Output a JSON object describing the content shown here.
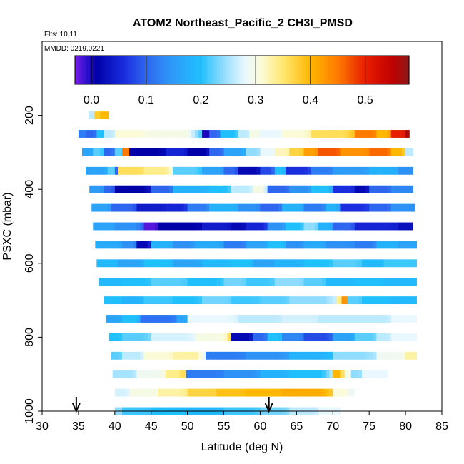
{
  "chart_data": {
    "type": "heatmap",
    "title": "ATOM2 Northeast_Pacific_2 CH3I_PMSD",
    "flights_label": "Flts: 10,11",
    "date_label": "MMDD: 0219,0221",
    "xlabel": "Latitude (deg N)",
    "ylabel": "PSXC (mbar)",
    "xlim": [
      30,
      85
    ],
    "ylim": [
      1000,
      0
    ],
    "xticks": [
      "30",
      "35",
      "40",
      "45",
      "50",
      "55",
      "60",
      "65",
      "70",
      "75",
      "80",
      "85"
    ],
    "yticks": [
      "200",
      "400",
      "600",
      "800",
      "1000"
    ],
    "colorbar": {
      "range": [
        -0.03,
        0.58
      ],
      "ticks": [
        "0.0",
        "0.1",
        "0.2",
        "0.3",
        "0.4",
        "0.5"
      ],
      "stops": [
        {
          "v": -0.03,
          "c": "#7a1fe6"
        },
        {
          "v": -0.01,
          "c": "#3010d0"
        },
        {
          "v": 0.01,
          "c": "#0000a8"
        },
        {
          "v": 0.06,
          "c": "#1a2ee0"
        },
        {
          "v": 0.1,
          "c": "#2f66f0"
        },
        {
          "v": 0.15,
          "c": "#2d9cf8"
        },
        {
          "v": 0.2,
          "c": "#20c0ff"
        },
        {
          "v": 0.24,
          "c": "#8fdcff"
        },
        {
          "v": 0.28,
          "c": "#e9f8ff"
        },
        {
          "v": 0.31,
          "c": "#fbfbd8"
        },
        {
          "v": 0.35,
          "c": "#ffe870"
        },
        {
          "v": 0.4,
          "c": "#ffb700"
        },
        {
          "v": 0.45,
          "c": "#ff7a00"
        },
        {
          "v": 0.5,
          "c": "#e81e00"
        },
        {
          "v": 0.55,
          "c": "#c00000"
        },
        {
          "v": 0.58,
          "c": "#8b1a1a"
        }
      ]
    },
    "arrows_lat": [
      34.7,
      61.2
    ],
    "layers": [
      {
        "p": 200,
        "lat0": 36.4,
        "lat1": 39.1,
        "segs": [
          [
            36.4,
            0.26
          ],
          [
            37.2,
            0.38
          ],
          [
            38.0,
            0.4
          ]
        ]
      },
      {
        "p": 250,
        "lat0": 35.0,
        "lat1": 80.5,
        "segs": [
          [
            35.0,
            0.12
          ],
          [
            36.0,
            0.1
          ],
          [
            37.5,
            0.2
          ],
          [
            38.5,
            0.26
          ],
          [
            40.0,
            0.31
          ],
          [
            44.0,
            0.3
          ],
          [
            52.0,
            0.0
          ],
          [
            53.0,
            0.1
          ],
          [
            54.5,
            0.2
          ],
          [
            57.0,
            0.26
          ],
          [
            58.5,
            0.3
          ],
          [
            60.0,
            0.28
          ],
          [
            63.0,
            0.31
          ],
          [
            67.0,
            0.36
          ],
          [
            73.0,
            0.45
          ],
          [
            76.0,
            0.4
          ],
          [
            78.0,
            0.5
          ],
          [
            80.0,
            0.56
          ]
        ]
      },
      {
        "p": 300,
        "lat0": 35.5,
        "lat1": 81.0,
        "segs": [
          [
            35.5,
            0.16
          ],
          [
            37.0,
            0.22
          ],
          [
            38.5,
            0.1
          ],
          [
            40.0,
            0.22
          ],
          [
            41.0,
            0.45
          ],
          [
            42.0,
            0.01
          ],
          [
            47.0,
            0.05
          ],
          [
            50.0,
            0.01
          ],
          [
            53.0,
            0.1
          ],
          [
            55.0,
            0.16
          ],
          [
            58.0,
            0.24
          ],
          [
            60.0,
            0.28
          ],
          [
            62.0,
            0.32
          ],
          [
            64.0,
            0.37
          ],
          [
            66.0,
            0.42
          ],
          [
            68.0,
            0.47
          ],
          [
            71.0,
            0.43
          ],
          [
            75.0,
            0.46
          ],
          [
            78.0,
            0.4
          ],
          [
            80.0,
            0.26
          ]
        ]
      },
      {
        "p": 350,
        "lat0": 36.0,
        "lat1": 81.0,
        "segs": [
          [
            36.0,
            0.16
          ],
          [
            39.0,
            0.22
          ],
          [
            40.0,
            0.1
          ],
          [
            40.5,
            0.36
          ],
          [
            44.0,
            0.34
          ],
          [
            48.0,
            0.22
          ],
          [
            52.0,
            0.16
          ],
          [
            55.0,
            0.1
          ],
          [
            57.0,
            0.02
          ],
          [
            60.0,
            0.08
          ],
          [
            62.0,
            0.2
          ],
          [
            63.5,
            0.06
          ],
          [
            67.0,
            0.12
          ],
          [
            70.0,
            0.15
          ],
          [
            75.0,
            0.18
          ],
          [
            79.0,
            0.14
          ]
        ]
      },
      {
        "p": 400,
        "lat0": 36.5,
        "lat1": 81.0,
        "segs": [
          [
            36.5,
            0.15
          ],
          [
            38.5,
            0.1
          ],
          [
            40.0,
            0.01
          ],
          [
            45.0,
            0.1
          ],
          [
            48.0,
            0.18
          ],
          [
            53.0,
            0.2
          ],
          [
            56.0,
            0.26
          ],
          [
            59.0,
            0.3
          ],
          [
            61.0,
            0.1
          ],
          [
            64.0,
            0.14
          ],
          [
            67.0,
            0.2
          ],
          [
            70.0,
            0.06
          ],
          [
            73.0,
            0.02
          ],
          [
            75.0,
            0.1
          ],
          [
            78.0,
            0.13
          ]
        ]
      },
      {
        "p": 450,
        "lat0": 36.8,
        "lat1": 81.3,
        "segs": [
          [
            36.8,
            0.16
          ],
          [
            39.5,
            0.1
          ],
          [
            43.0,
            0.04
          ],
          [
            47.0,
            0.05
          ],
          [
            50.0,
            0.12
          ],
          [
            53.0,
            0.18
          ],
          [
            57.0,
            0.14
          ],
          [
            60.0,
            0.1
          ],
          [
            63.0,
            0.18
          ],
          [
            66.0,
            0.12
          ],
          [
            69.0,
            0.18
          ],
          [
            71.0,
            0.06
          ],
          [
            75.0,
            0.1
          ],
          [
            78.0,
            0.14
          ]
        ]
      },
      {
        "p": 500,
        "lat0": 37.0,
        "lat1": 81.0,
        "segs": [
          [
            37.0,
            0.16
          ],
          [
            40.0,
            0.14
          ],
          [
            44.0,
            -0.02
          ],
          [
            46.0,
            0.01
          ],
          [
            52.0,
            0.04
          ],
          [
            56.0,
            0.02
          ],
          [
            58.0,
            0.05
          ],
          [
            61.0,
            0.14
          ],
          [
            63.5,
            0.2
          ],
          [
            66.0,
            0.24
          ],
          [
            68.0,
            0.18
          ],
          [
            70.0,
            0.1
          ],
          [
            73.0,
            0.05
          ],
          [
            79.0,
            0.03
          ]
        ]
      },
      {
        "p": 550,
        "lat0": 37.3,
        "lat1": 81.5,
        "segs": [
          [
            37.3,
            0.17
          ],
          [
            41.0,
            0.14
          ],
          [
            43.0,
            0.02
          ],
          [
            45.0,
            0.18
          ],
          [
            48.0,
            0.14
          ],
          [
            51.0,
            0.17
          ],
          [
            55.0,
            0.12
          ],
          [
            58.0,
            0.16
          ],
          [
            61.0,
            0.2
          ],
          [
            63.5,
            0.14
          ],
          [
            66.0,
            0.17
          ],
          [
            69.0,
            0.14
          ],
          [
            73.0,
            0.12
          ],
          [
            76.0,
            0.18
          ],
          [
            79.0,
            0.16
          ]
        ]
      },
      {
        "p": 600,
        "lat0": 37.5,
        "lat1": 81.5,
        "segs": [
          [
            37.5,
            0.19
          ],
          [
            40.5,
            0.16
          ],
          [
            44.0,
            0.2
          ],
          [
            48.0,
            0.16
          ],
          [
            52.0,
            0.19
          ],
          [
            56.0,
            0.2
          ],
          [
            59.0,
            0.16
          ],
          [
            62.0,
            0.18
          ],
          [
            66.0,
            0.2
          ],
          [
            70.0,
            0.22
          ],
          [
            74.0,
            0.19
          ],
          [
            77.0,
            0.21
          ]
        ]
      },
      {
        "p": 650,
        "lat0": 37.8,
        "lat1": 81.5,
        "segs": [
          [
            37.8,
            0.19
          ],
          [
            41.0,
            0.2
          ],
          [
            45.0,
            0.22
          ],
          [
            50.0,
            0.2
          ],
          [
            55.0,
            0.23
          ],
          [
            58.0,
            0.21
          ],
          [
            62.0,
            0.24
          ],
          [
            66.0,
            0.22
          ],
          [
            69.0,
            0.19
          ],
          [
            73.0,
            0.2
          ],
          [
            77.0,
            0.19
          ]
        ]
      },
      {
        "p": 700,
        "lat0": 38.5,
        "lat1": 81.5,
        "segs": [
          [
            38.5,
            0.2
          ],
          [
            41.0,
            0.18
          ],
          [
            44.0,
            0.21
          ],
          [
            48.0,
            0.2
          ],
          [
            52.0,
            0.23
          ],
          [
            56.0,
            0.21
          ],
          [
            60.0,
            0.22
          ],
          [
            64.0,
            0.24
          ],
          [
            70.5,
            0.34
          ],
          [
            71.2,
            0.43
          ],
          [
            72.0,
            0.22
          ],
          [
            74.0,
            0.2
          ],
          [
            78.0,
            0.19
          ]
        ]
      },
      {
        "p": 750,
        "lat0": 38.8,
        "lat1": 81.5,
        "segs": [
          [
            38.8,
            0.16
          ],
          [
            41.0,
            0.2
          ],
          [
            43.5,
            0.11
          ],
          [
            48.5,
            0.16
          ],
          [
            50.0,
            0.28
          ],
          [
            57.0,
            0.26
          ],
          [
            63.0,
            0.27
          ],
          [
            68.0,
            0.26
          ],
          [
            74.0,
            0.26
          ],
          [
            78.0,
            0.28
          ]
        ]
      },
      {
        "p": 800,
        "lat0": 39.2,
        "lat1": 81.5,
        "segs": [
          [
            39.2,
            0.2
          ],
          [
            41.0,
            0.22
          ],
          [
            45.0,
            0.27
          ],
          [
            51.0,
            0.3
          ],
          [
            55.5,
            0.36
          ],
          [
            56.0,
            0.02
          ],
          [
            59.0,
            0.1
          ],
          [
            61.0,
            0.2
          ],
          [
            63.0,
            0.13
          ],
          [
            66.0,
            0.08
          ],
          [
            70.0,
            0.16
          ],
          [
            73.0,
            0.22
          ],
          [
            76.0,
            0.26
          ],
          [
            78.0,
            0.28
          ]
        ]
      },
      {
        "p": 850,
        "lat0": 39.5,
        "lat1": 81.5,
        "segs": [
          [
            39.5,
            0.22
          ],
          [
            41.0,
            0.26
          ],
          [
            44.0,
            0.31
          ],
          [
            48.0,
            0.33
          ],
          [
            52.5,
            0.12
          ],
          [
            58.0,
            0.14
          ],
          [
            64.0,
            0.18
          ],
          [
            70.0,
            0.24
          ],
          [
            76.0,
            0.29
          ],
          [
            80.0,
            0.33
          ]
        ]
      },
      {
        "p": 900,
        "lat0": 39.7,
        "lat1": 77.5,
        "segs": [
          [
            39.7,
            0.25
          ],
          [
            43.0,
            0.29
          ],
          [
            47.0,
            0.34
          ],
          [
            49.0,
            0.36
          ],
          [
            49.8,
            0.12
          ],
          [
            55.0,
            0.14
          ],
          [
            60.0,
            0.18
          ],
          [
            64.0,
            0.2
          ],
          [
            70.0,
            0.4
          ],
          [
            71.0,
            0.36
          ],
          [
            71.6,
            0.3
          ],
          [
            72.5,
            0.24
          ],
          [
            74.0,
            0.28
          ]
        ]
      },
      {
        "p": 950,
        "lat0": 40.0,
        "lat1": 73.0,
        "segs": [
          [
            40.0,
            0.27
          ],
          [
            42.0,
            0.3
          ],
          [
            46.0,
            0.33
          ],
          [
            50.0,
            0.37
          ],
          [
            54.0,
            0.39
          ],
          [
            58.0,
            0.4
          ],
          [
            63.0,
            0.41
          ],
          [
            70.0,
            0.31
          ],
          [
            72.0,
            0.29
          ]
        ]
      },
      {
        "p": 1000,
        "lat0": 40.0,
        "lat1": 71.0,
        "segs": [
          [
            40.0,
            0.24
          ],
          [
            41.0,
            0.21
          ],
          [
            45.0,
            0.2
          ],
          [
            50.0,
            0.19
          ],
          [
            55.0,
            0.21
          ],
          [
            60.0,
            0.23
          ],
          [
            64.0,
            0.26
          ],
          [
            68.0,
            0.28
          ]
        ]
      }
    ]
  }
}
